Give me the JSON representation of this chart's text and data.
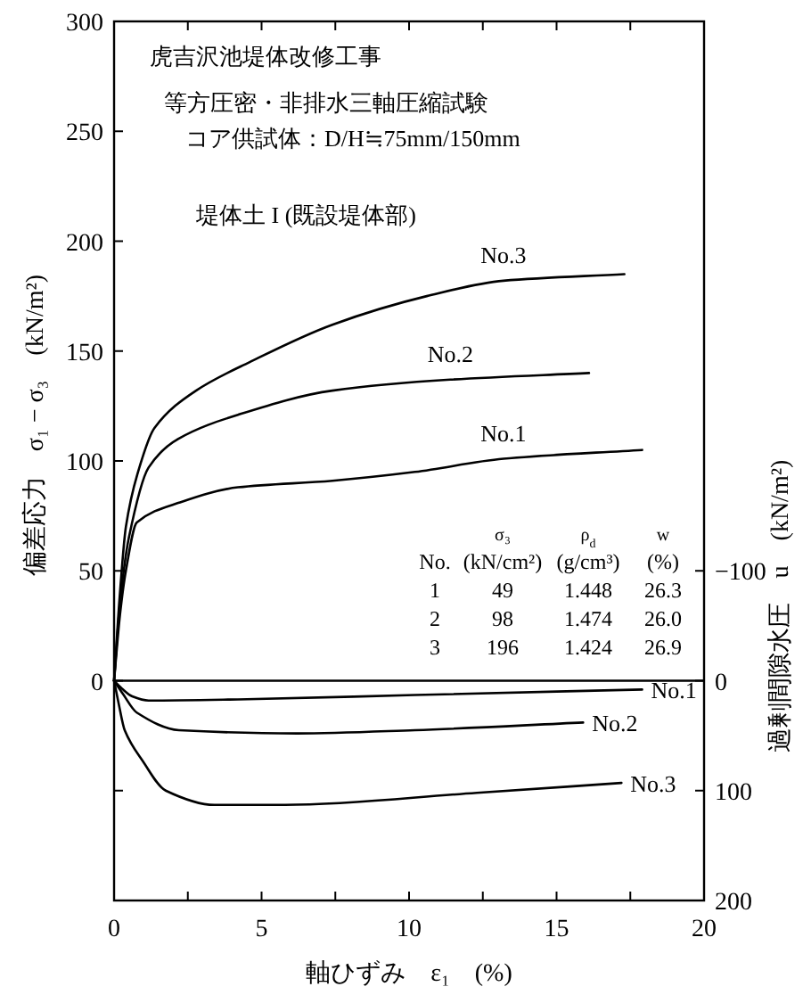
{
  "chart_data": {
    "type": "line",
    "xlabel": "軸ひずみ　ε₁　(%)",
    "ylabel": "偏差応力　σ₁ − σ₃　(kN/m²)",
    "y2label": "過剰間隙水圧　u　(kN/m²)",
    "xlim": [
      0,
      20
    ],
    "xticks": [
      0,
      {
        "value": 2.5,
        "label": null
      },
      5,
      {
        "value": 7.5,
        "label": null
      },
      10,
      {
        "value": 12.5,
        "label": null
      },
      15,
      {
        "value": 17.5,
        "label": null
      },
      20
    ],
    "ylim": [
      -100,
      300
    ],
    "yticks": [
      {
        "value": -50,
        "label": null
      },
      0,
      50,
      100,
      150,
      200,
      250,
      300
    ],
    "y2lim": [
      200,
      -600
    ],
    "y2ticks": [
      {
        "value": -100,
        "label": "−100"
      },
      0,
      100,
      200
    ],
    "grid": false,
    "legend": false,
    "marker": "none",
    "line_style": "solid",
    "ref_lines": [
      {
        "axis": "y",
        "value": 0
      }
    ],
    "series": [
      {
        "name": "No.3",
        "color": "#000000",
        "x": [
          0,
          0.2,
          0.4,
          0.79,
          1.37,
          2.78,
          4.6,
          7.4,
          10.6,
          13.2,
          17.3
        ],
        "values": [
          0,
          40,
          70,
          94,
          115,
          132,
          145,
          162,
          175,
          182,
          185
        ]
      },
      {
        "name": "No.2",
        "color": "#000000",
        "x": [
          0,
          0.2,
          0.5,
          1.17,
          2.17,
          4.2,
          7.4,
          11.4,
          16.1
        ],
        "values": [
          0,
          35,
          65,
          97,
          110,
          121,
          132,
          137,
          140
        ]
      },
      {
        "name": "No.1",
        "color": "#000000",
        "x": [
          0,
          0.2,
          0.4,
          0.77,
          2.2,
          4.2,
          7.4,
          10.2,
          13.2,
          17.9
        ],
        "values": [
          0,
          30,
          50,
          72,
          81,
          88,
          91,
          95,
          101,
          105
        ]
      },
      {
        "name": "No.1",
        "color": "#000000",
        "axis": "y2",
        "x": [
          0,
          0.3,
          0.6,
          1.17,
          4.2,
          10.2,
          17.9
        ],
        "values": [
          0,
          8,
          14,
          18,
          17,
          13,
          8
        ]
      },
      {
        "name": "No.2",
        "color": "#000000",
        "axis": "y2",
        "x": [
          0,
          0.3,
          0.77,
          2.2,
          6.2,
          10.2,
          15.9
        ],
        "values": [
          0,
          12,
          29,
          45,
          48,
          45,
          38
        ]
      },
      {
        "name": "No.3",
        "color": "#000000",
        "axis": "y2",
        "x": [
          0,
          0.15,
          0.36,
          0.97,
          1.75,
          3.4,
          5.8,
          12.3,
          17.2
        ],
        "values": [
          0,
          20,
          45,
          73,
          100,
          113,
          113,
          102,
          93
        ]
      }
    ],
    "annotations": [
      "虎吉沢池堤体改修工事",
      "等方圧密・非排水三軸圧縮試験",
      "コア供試体：D/H≒75mm/150mm",
      "堤体土 I (既設堤体部)",
      "σ₃",
      "ρ$_{d}$",
      "w",
      "No.",
      "(kN/cm²)",
      "(g/cm³)",
      "(%)",
      "1",
      "49",
      "1.448",
      "26.3",
      "2",
      "98",
      "1.474",
      "26.0",
      "3",
      "196",
      "1.424",
      "26.9"
    ]
  }
}
